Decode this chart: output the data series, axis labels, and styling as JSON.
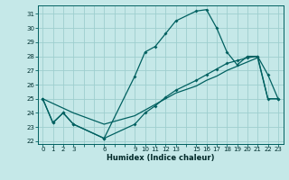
{
  "xlabel": "Humidex (Indice chaleur)",
  "bg_color": "#c5e8e8",
  "grid_color": "#9ecece",
  "line_color": "#006060",
  "xlim": [
    -0.5,
    23.5
  ],
  "ylim": [
    21.8,
    31.6
  ],
  "xtick_labels": [
    0,
    1,
    2,
    3,
    6,
    9,
    10,
    11,
    12,
    13,
    15,
    16,
    17,
    18,
    19,
    20,
    21,
    22,
    23
  ],
  "yticks": [
    22,
    23,
    24,
    25,
    26,
    27,
    28,
    29,
    30,
    31
  ],
  "line1_x": [
    0,
    1,
    2,
    3,
    6,
    9,
    10,
    11,
    12,
    13,
    15,
    16,
    17,
    18,
    19,
    20,
    21,
    22,
    23
  ],
  "line1_y": [
    25.0,
    23.3,
    24.0,
    23.2,
    22.2,
    26.6,
    28.3,
    28.7,
    29.6,
    30.5,
    31.2,
    31.3,
    30.0,
    28.3,
    27.4,
    28.0,
    28.0,
    26.7,
    25.0
  ],
  "line2_x": [
    0,
    1,
    2,
    3,
    6,
    9,
    10,
    11,
    12,
    13,
    15,
    16,
    17,
    18,
    19,
    20,
    21,
    22,
    23
  ],
  "line2_y": [
    25.0,
    23.3,
    24.0,
    23.2,
    22.2,
    23.2,
    24.0,
    24.5,
    25.1,
    25.6,
    26.3,
    26.7,
    27.1,
    27.5,
    27.7,
    27.9,
    28.0,
    25.0,
    25.0
  ],
  "line3_x": [
    0,
    3,
    6,
    9,
    10,
    11,
    12,
    13,
    15,
    16,
    17,
    18,
    19,
    20,
    21,
    22,
    23
  ],
  "line3_y": [
    25.0,
    24.0,
    23.2,
    23.8,
    24.2,
    24.6,
    25.0,
    25.4,
    25.9,
    26.3,
    26.6,
    27.0,
    27.3,
    27.6,
    27.9,
    25.0,
    25.0
  ],
  "all_xticks": [
    0,
    1,
    2,
    3,
    4,
    5,
    6,
    7,
    8,
    9,
    10,
    11,
    12,
    13,
    14,
    15,
    16,
    17,
    18,
    19,
    20,
    21,
    22,
    23
  ]
}
